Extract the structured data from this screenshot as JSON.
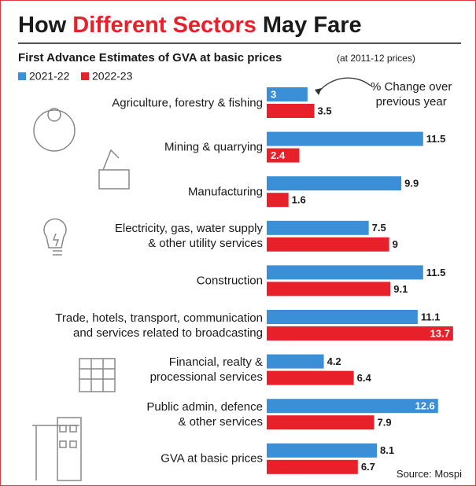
{
  "chart_data": {
    "type": "bar",
    "orientation": "horizontal",
    "title_parts": [
      "How",
      "Different Sectors",
      "May Fare"
    ],
    "title_colors": [
      "#1a1a1a",
      "#e8202a",
      "#1a1a1a"
    ],
    "subtitle": "First Advance Estimates of GVA at basic prices",
    "subtitle_note": "(at 2011-12 prices)",
    "annotation": "% Change over\nprevious year",
    "source": "Source: Mospi",
    "categories": [
      "Agriculture, forestry & fishing",
      "Mining & quarrying",
      "Manufacturing",
      "Electricity, gas, water supply\n& other utility services",
      "Construction",
      "Trade, hotels, transport, communication\nand services related to broadcasting",
      "Financial, realty &\nprocessional services",
      "Public admin, defence\n& other services",
      "GVA at basic prices"
    ],
    "series": [
      {
        "name": "2021-22",
        "color": "#3a8fd6",
        "values": [
          3,
          11.5,
          9.9,
          7.5,
          11.5,
          11.1,
          4.2,
          12.6,
          8.1
        ]
      },
      {
        "name": "2022-23",
        "color": "#e8202a",
        "values": [
          3.5,
          2.4,
          1.6,
          9,
          9.1,
          13.7,
          6.4,
          7.9,
          6.7
        ]
      }
    ],
    "xlim": [
      0,
      14
    ]
  }
}
